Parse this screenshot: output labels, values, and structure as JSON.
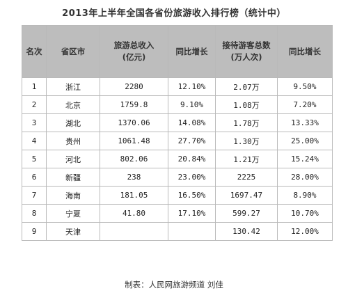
{
  "title": "2013年上半年全国各省份旅游收入排行榜（统计中）",
  "headers": {
    "rank": "名次",
    "province": "省区市",
    "revenue_line1": "旅游总收入",
    "revenue_line2": "(亿元)",
    "revenue_growth": "同比增长",
    "visitors_line1": "接待游客总数",
    "visitors_line2": "(万人次)",
    "visitors_growth": "同比增长"
  },
  "rows": [
    {
      "rank": "1",
      "province": "浙江",
      "revenue": "2280",
      "revenue_growth": "12.10%",
      "visitors": "2.07万",
      "visitors_growth": "9.50%"
    },
    {
      "rank": "2",
      "province": "北京",
      "revenue": "1759.8",
      "revenue_growth": "9.10%",
      "visitors": "1.08万",
      "visitors_growth": "7.20%"
    },
    {
      "rank": "3",
      "province": "湖北",
      "revenue": "1370.06",
      "revenue_growth": "14.08%",
      "visitors": "1.78万",
      "visitors_growth": "13.33%"
    },
    {
      "rank": "4",
      "province": "贵州",
      "revenue": "1061.48",
      "revenue_growth": "27.70%",
      "visitors": "1.30万",
      "visitors_growth": "25.00%"
    },
    {
      "rank": "5",
      "province": "河北",
      "revenue": "802.06",
      "revenue_growth": "20.84%",
      "visitors": "1.21万",
      "visitors_growth": "15.24%"
    },
    {
      "rank": "6",
      "province": "新疆",
      "revenue": "238",
      "revenue_growth": "23.00%",
      "visitors": "2225",
      "visitors_growth": "28.00%"
    },
    {
      "rank": "7",
      "province": "海南",
      "revenue": "181.05",
      "revenue_growth": "16.50%",
      "visitors": "1697.47",
      "visitors_growth": "8.90%"
    },
    {
      "rank": "8",
      "province": "宁夏",
      "revenue": "41.80",
      "revenue_growth": "17.10%",
      "visitors": "599.27",
      "visitors_growth": "10.70%"
    },
    {
      "rank": "9",
      "province": "天津",
      "revenue": "",
      "revenue_growth": "",
      "visitors": "130.42",
      "visitors_growth": "12.00%"
    }
  ],
  "caption": "制表：人民网旅游频道  刘佳"
}
